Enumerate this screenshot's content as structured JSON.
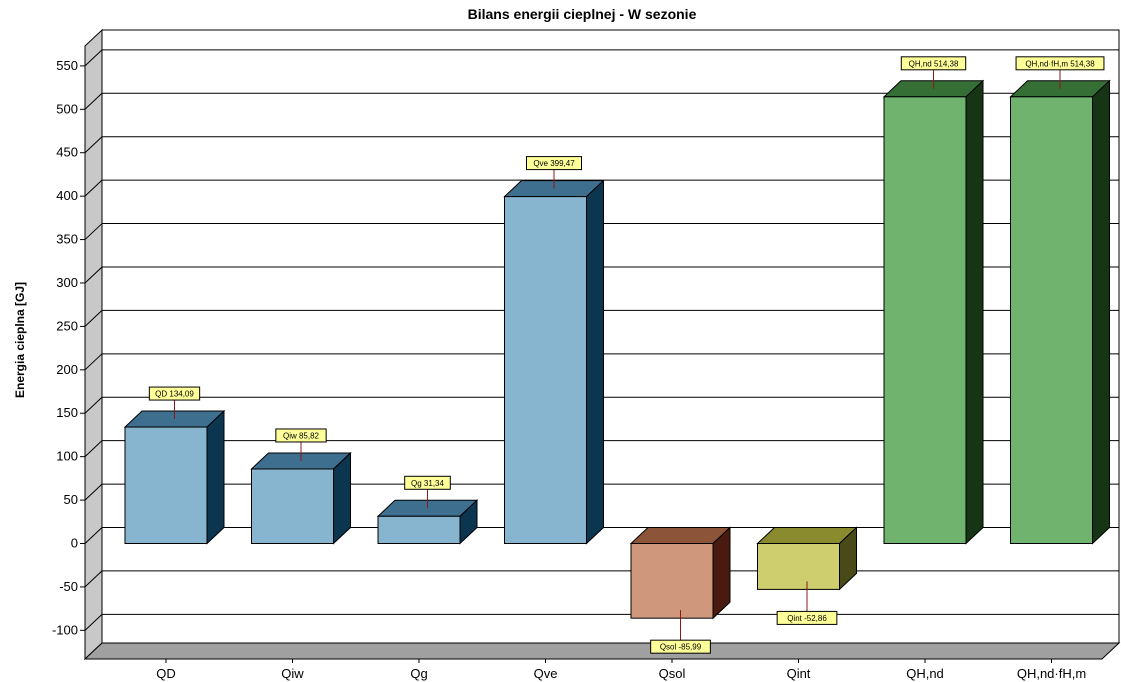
{
  "chart_data": {
    "type": "bar",
    "title": "Bilans energii cieplnej - W sezonie",
    "ylabel": "Energia cieplna [GJ]",
    "xlabel": "",
    "ylim": [
      -100,
      550
    ],
    "yticks": [
      550,
      500,
      450,
      400,
      350,
      300,
      250,
      200,
      150,
      100,
      50,
      0,
      -50,
      -100
    ],
    "ytick_labels": [
      "550",
      "500",
      "450",
      "400",
      "350",
      "300",
      "250",
      "200",
      "150",
      "100",
      "50",
      "0",
      "-50",
      "-100"
    ],
    "grid": true,
    "categories": [
      "QD",
      "Qiw",
      "Qg",
      "Qve",
      "Qsol",
      "Qint",
      "QH,nd",
      "QH,nd·fH,m"
    ],
    "values": [
      134.09,
      85.82,
      31.34,
      399.47,
      -85.99,
      -52.86,
      514.38,
      514.38
    ],
    "data_labels": [
      "QD 134,09",
      "Qiw 85,82",
      "Qg 31,34",
      "Qve 399,47",
      "Qsol -85,99",
      "Qint -52,86",
      "QH,nd 514,38",
      "QH,nd·fH,m 514,38"
    ],
    "colors": {
      "front": [
        "#87b5cf",
        "#87b5cf",
        "#87b5cf",
        "#87b5cf",
        "#cf987c",
        "#cfce6f",
        "#6fb36f",
        "#6fb36f"
      ],
      "top": [
        "#3f6f8f",
        "#3f6f8f",
        "#3f6f8f",
        "#3f6f8f",
        "#8c5539",
        "#8a8a2f",
        "#356f35",
        "#356f35"
      ],
      "side": [
        "#0c3550",
        "#0c3550",
        "#0c3550",
        "#0c3550",
        "#4a1a10",
        "#4a4a18",
        "#153515",
        "#153515"
      ],
      "label_bg": "#ffff99",
      "wall": "#c8c8c8",
      "floor": "#a0a0a0"
    }
  }
}
